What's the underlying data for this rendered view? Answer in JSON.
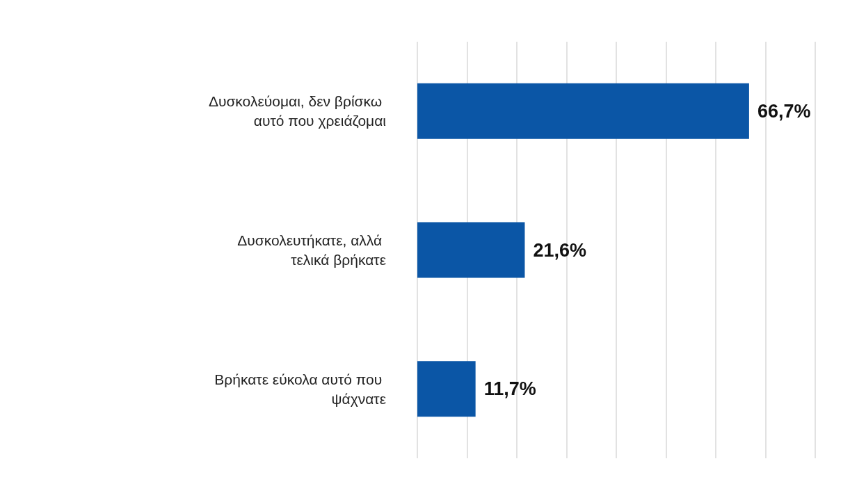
{
  "chart_data": {
    "type": "bar",
    "orientation": "horizontal",
    "categories": [
      "Δυσκολεύομαι, δεν βρίσκω αυτό που χρειάζομαι",
      "Δυσκολευτήκατε, αλλά τελικά βρήκατε",
      "Βρήκατε εύκολα αυτό που ψάχνατε"
    ],
    "values": [
      66.7,
      21.6,
      11.7
    ],
    "value_labels": [
      "66,7%",
      "21,6%",
      "11,7%"
    ],
    "color": "#0b56a6",
    "xlim": [
      0,
      80
    ],
    "xticks": [
      {
        "value": 0,
        "label": null
      },
      {
        "value": 10,
        "label": null
      },
      {
        "value": 20,
        "label": null
      },
      {
        "value": 30,
        "label": null
      },
      {
        "value": 40,
        "label": null
      },
      {
        "value": 50,
        "label": null
      },
      {
        "value": 60,
        "label": null
      },
      {
        "value": 70,
        "label": null
      },
      {
        "value": 80,
        "label": null
      }
    ],
    "grid": "x",
    "tick_labels": "y"
  }
}
